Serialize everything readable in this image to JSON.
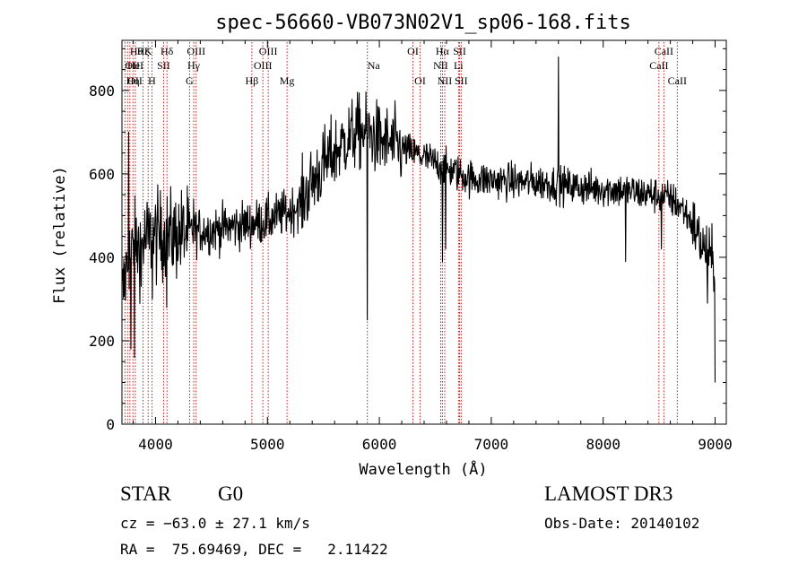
{
  "chart_data": {
    "type": "line",
    "title": "spec-56660-VB073N02V1_sp06-168.fits",
    "xlabel": "Wavelength (Å)",
    "ylabel": "Flux (relative)",
    "xlim": [
      3700,
      9100
    ],
    "ylim": [
      0,
      920
    ],
    "xticks": [
      4000,
      5000,
      6000,
      7000,
      8000,
      9000
    ],
    "yticks": [
      0,
      200,
      400,
      600,
      800
    ],
    "grid": false,
    "series": [
      {
        "name": "spectrum",
        "color": "#000000",
        "anchors": [
          [
            3700,
            300
          ],
          [
            3750,
            390
          ],
          [
            3800,
            420
          ],
          [
            3850,
            430
          ],
          [
            3900,
            440
          ],
          [
            3950,
            445
          ],
          [
            4000,
            450
          ],
          [
            4100,
            450
          ],
          [
            4200,
            455
          ],
          [
            4300,
            460
          ],
          [
            4400,
            465
          ],
          [
            4500,
            465
          ],
          [
            4600,
            470
          ],
          [
            4700,
            475
          ],
          [
            4800,
            478
          ],
          [
            4900,
            483
          ],
          [
            5000,
            488
          ],
          [
            5100,
            500
          ],
          [
            5200,
            510
          ],
          [
            5300,
            530
          ],
          [
            5400,
            580
          ],
          [
            5500,
            620
          ],
          [
            5600,
            650
          ],
          [
            5700,
            680
          ],
          [
            5800,
            700
          ],
          [
            5900,
            700
          ],
          [
            6000,
            680
          ],
          [
            6100,
            670
          ],
          [
            6200,
            660
          ],
          [
            6300,
            650
          ],
          [
            6400,
            640
          ],
          [
            6500,
            625
          ],
          [
            6600,
            612
          ],
          [
            6700,
            602
          ],
          [
            6800,
            590
          ],
          [
            6900,
            587
          ],
          [
            7000,
            585
          ],
          [
            7100,
            583
          ],
          [
            7200,
            582
          ],
          [
            7300,
            580
          ],
          [
            7400,
            580
          ],
          [
            7500,
            578
          ],
          [
            7600,
            575
          ],
          [
            7700,
            570
          ],
          [
            7800,
            568
          ],
          [
            7900,
            565
          ],
          [
            8000,
            565
          ],
          [
            8100,
            562
          ],
          [
            8200,
            560
          ],
          [
            8300,
            555
          ],
          [
            8400,
            552
          ],
          [
            8500,
            548
          ],
          [
            8600,
            540
          ],
          [
            8700,
            520
          ],
          [
            8800,
            480
          ],
          [
            8900,
            420
          ],
          [
            9000,
            380
          ]
        ],
        "spikes": [
          [
            3760,
            700
          ],
          [
            3780,
            180
          ],
          [
            3810,
            160
          ],
          [
            3870,
            330
          ],
          [
            3970,
            300
          ],
          [
            4050,
            520
          ],
          [
            4100,
            280
          ],
          [
            4340,
            540
          ],
          [
            5890,
            250
          ],
          [
            6563,
            390
          ],
          [
            6590,
            420
          ],
          [
            7600,
            880
          ],
          [
            8200,
            390
          ],
          [
            8520,
            420
          ],
          [
            8930,
            290
          ],
          [
            8998,
            100
          ]
        ]
      }
    ],
    "lines": [
      {
        "wl": 3727,
        "label": "OII",
        "tier": 2,
        "align": "start"
      },
      {
        "wl": 3750,
        "label": "OII",
        "tier": 3,
        "align": "start"
      },
      {
        "wl": 3771,
        "label": "Hθ",
        "tier": 1,
        "align": "start"
      },
      {
        "wl": 3798,
        "label": "Hη",
        "tier": 3,
        "align": "middle"
      },
      {
        "wl": 3820,
        "label": "HeI",
        "tier": 2,
        "align": "middle"
      },
      {
        "wl": 3889,
        "label": "Hζ",
        "tier": 1,
        "align": "middle"
      },
      {
        "wl": 3934,
        "label": "K",
        "tier": 1,
        "align": "middle"
      },
      {
        "wl": 3968,
        "label": "H",
        "tier": 3,
        "align": "middle"
      },
      {
        "wl": 4072,
        "label": "SII",
        "tier": 2,
        "align": "middle"
      },
      {
        "wl": 4102,
        "label": "Hδ",
        "tier": 1,
        "align": "middle"
      },
      {
        "wl": 4304,
        "label": "G",
        "tier": 3,
        "align": "middle"
      },
      {
        "wl": 4341,
        "label": "Hγ",
        "tier": 2,
        "align": "middle"
      },
      {
        "wl": 4363,
        "label": "OIII",
        "tier": 1,
        "align": "middle"
      },
      {
        "wl": 4861,
        "label": "Hβ",
        "tier": 3,
        "align": "middle"
      },
      {
        "wl": 4959,
        "label": "OIII",
        "tier": 2,
        "align": "middle"
      },
      {
        "wl": 5007,
        "label": "OIII",
        "tier": 1,
        "align": "middle"
      },
      {
        "wl": 5175,
        "label": "Mg",
        "tier": 3,
        "align": "middle"
      },
      {
        "wl": 5893,
        "label": "Na",
        "tier": 2,
        "align": "start"
      },
      {
        "wl": 6300,
        "label": "OI",
        "tier": 1,
        "align": "middle"
      },
      {
        "wl": 6364,
        "label": "OI",
        "tier": 3,
        "align": "middle"
      },
      {
        "wl": 6548,
        "label": "NII",
        "tier": 2,
        "align": "middle"
      },
      {
        "wl": 6563,
        "label": "Hα",
        "tier": 1,
        "align": "middle"
      },
      {
        "wl": 6584,
        "label": "NII",
        "tier": 3,
        "align": "middle"
      },
      {
        "wl": 6707,
        "label": "Li",
        "tier": 2,
        "align": "middle"
      },
      {
        "wl": 6717,
        "label": "SII",
        "tier": 1,
        "align": "middle"
      },
      {
        "wl": 6731,
        "label": "SII",
        "tier": 3,
        "align": "middle"
      },
      {
        "wl": 8498,
        "label": "CaII",
        "tier": 2,
        "align": "middle"
      },
      {
        "wl": 8542,
        "label": "CaII",
        "tier": 1,
        "align": "middle"
      },
      {
        "wl": 8662,
        "label": "CaII",
        "tier": 3,
        "align": "middle"
      }
    ],
    "line_color": "#cc0000"
  },
  "info": {
    "class_label": "STAR",
    "subclass": "G0",
    "cz": "cz = −63.0 ± 27.1 km/s",
    "radec": "RA =  75.69469, DEC =   2.11422",
    "survey": "LAMOST DR3",
    "obs_date": "Obs-Date: 20140102"
  }
}
